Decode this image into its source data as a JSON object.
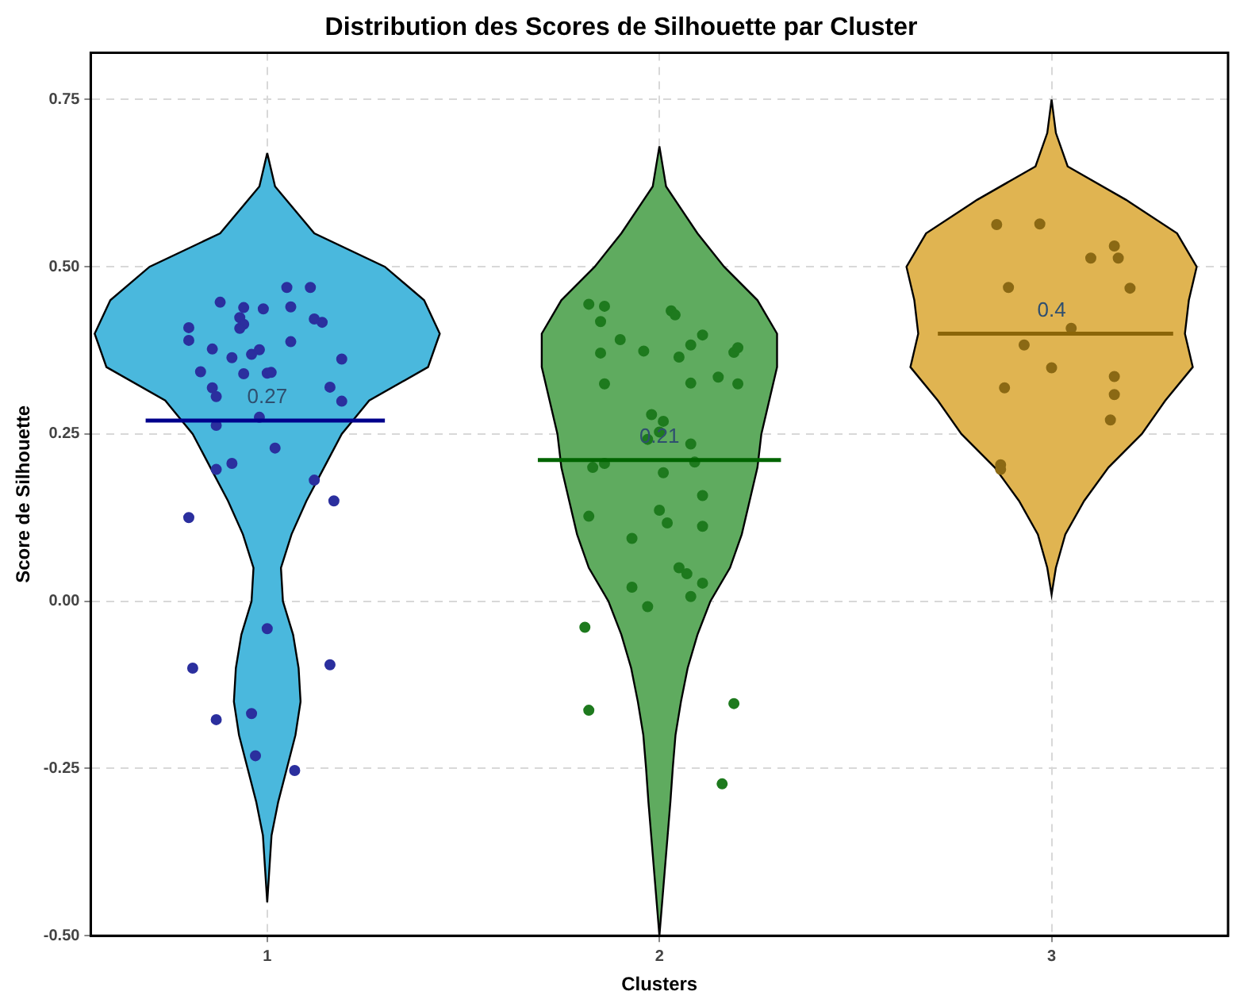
{
  "chart_data": {
    "type": "scatter",
    "title": "Distribution des Scores de Silhouette par Cluster",
    "xlabel": "Clusters",
    "ylabel": "Score de Silhouette",
    "xlim": [
      0.55,
      3.45
    ],
    "xticks": [
      1,
      2,
      3
    ],
    "ylim": [
      -0.5,
      0.82
    ],
    "yticks": [
      {
        "value": -0.5,
        "label": "-0.50"
      },
      {
        "value": -0.25,
        "label": "-0.25"
      },
      {
        "value": 0,
        "label": "0.00"
      },
      {
        "value": 0.25,
        "label": "0.25"
      },
      {
        "value": 0.5,
        "label": "0.50"
      },
      {
        "value": 0.75,
        "label": "0.75"
      }
    ],
    "grid": true,
    "legend": false,
    "series": [
      {
        "type": "area",
        "color": "#4ab8dd",
        "x": [
          1,
          1.02,
          1.12,
          1.3,
          1.4,
          1.44,
          1.41,
          1.26,
          1.19,
          1.145,
          1.1,
          1.062,
          1.035,
          1.04,
          1.066,
          1.08,
          1.085,
          1.072,
          1.05,
          1.028,
          1.011,
          1,
          0.989,
          0.972,
          0.95,
          0.928,
          0.915,
          0.92,
          0.934,
          0.96,
          0.965,
          0.938,
          0.9,
          0.855,
          0.81,
          0.74,
          0.59,
          0.56,
          0.6,
          0.7,
          0.88,
          0.98,
          1
        ],
        "values": [
          0.67,
          0.62,
          0.55,
          0.5,
          0.45,
          0.4,
          0.35,
          0.3,
          0.25,
          0.2,
          0.15,
          0.1,
          0.05,
          0,
          -0.05,
          -0.1,
          -0.15,
          -0.2,
          -0.25,
          -0.3,
          -0.35,
          -0.45,
          -0.35,
          -0.3,
          -0.25,
          -0.2,
          -0.15,
          -0.1,
          -0.05,
          0,
          0.05,
          0.1,
          0.15,
          0.2,
          0.25,
          0.3,
          0.35,
          0.4,
          0.45,
          0.5,
          0.55,
          0.62,
          0.67
        ]
      },
      {
        "type": "scatter",
        "marker": "circle",
        "color": "#2b2f9e",
        "x": [
          1.05,
          1.11,
          0.88,
          0.94,
          0.99,
          1.06,
          0.93,
          0.94,
          0.93,
          0.8,
          1.12,
          1.14,
          0.8,
          1.06,
          0.86,
          0.91,
          0.96,
          0.98,
          1.19,
          0.83,
          0.94,
          1,
          1.01,
          0.86,
          0.87,
          1.16,
          1.19,
          0.98,
          0.87,
          1.02,
          0.87,
          0.91,
          1.12,
          1.17,
          0.8,
          1,
          0.81,
          1.16,
          0.87,
          0.96,
          0.97,
          1.07
        ],
        "values": [
          0.469,
          0.469,
          0.447,
          0.439,
          0.437,
          0.44,
          0.424,
          0.414,
          0.408,
          0.409,
          0.422,
          0.417,
          0.39,
          0.388,
          0.377,
          0.364,
          0.369,
          0.376,
          0.362,
          0.343,
          0.34,
          0.341,
          0.342,
          0.319,
          0.306,
          0.32,
          0.299,
          0.275,
          0.263,
          0.229,
          0.197,
          0.206,
          0.181,
          0.15,
          0.125,
          -0.041,
          -0.1,
          -0.095,
          -0.177,
          -0.168,
          -0.231,
          -0.253
        ]
      },
      {
        "type": "line",
        "color": "#00008b",
        "x": [
          0.69,
          1.3
        ],
        "values": [
          0.27,
          0.27
        ]
      },
      {
        "type": "area",
        "color": "#5fab5f",
        "x": [
          2,
          2.017,
          2.097,
          2.165,
          2.25,
          2.3,
          2.3,
          2.28,
          2.26,
          2.25,
          2.23,
          2.21,
          2.18,
          2.13,
          2.097,
          2.072,
          2.055,
          2.041,
          2.034,
          2.028,
          2.014,
          2,
          1.986,
          1.972,
          1.966,
          1.959,
          1.945,
          1.928,
          1.903,
          1.87,
          1.82,
          1.79,
          1.77,
          1.75,
          1.74,
          1.72,
          1.7,
          1.7,
          1.75,
          1.835,
          1.903,
          1.983,
          2
        ],
        "values": [
          0.68,
          0.62,
          0.55,
          0.5,
          0.45,
          0.4,
          0.35,
          0.3,
          0.25,
          0.2,
          0.15,
          0.1,
          0.05,
          0,
          -0.05,
          -0.1,
          -0.15,
          -0.2,
          -0.25,
          -0.3,
          -0.4,
          -0.5,
          -0.4,
          -0.3,
          -0.25,
          -0.2,
          -0.15,
          -0.1,
          -0.05,
          0,
          0.05,
          0.1,
          0.15,
          0.2,
          0.25,
          0.3,
          0.35,
          0.4,
          0.45,
          0.5,
          0.55,
          0.62,
          0.68
        ]
      },
      {
        "type": "scatter",
        "marker": "circle",
        "color": "#1e7a1e",
        "x": [
          1.82,
          1.86,
          1.85,
          2.03,
          2.04,
          1.9,
          1.85,
          1.96,
          2.05,
          2.08,
          2.11,
          2.19,
          2.2,
          1.86,
          2.08,
          2.15,
          2.2,
          1.98,
          2.01,
          2,
          1.97,
          2.08,
          1.83,
          1.86,
          2.09,
          2.01,
          2.11,
          1.82,
          2,
          2.02,
          2.11,
          1.93,
          2.05,
          2.07,
          1.93,
          2.11,
          2.08,
          1.97,
          1.81,
          1.82,
          2.19,
          2.16
        ],
        "values": [
          0.444,
          0.441,
          0.418,
          0.434,
          0.428,
          0.391,
          0.371,
          0.374,
          0.365,
          0.383,
          0.398,
          0.372,
          0.379,
          0.325,
          0.326,
          0.335,
          0.325,
          0.279,
          0.269,
          0.253,
          0.242,
          0.235,
          0.2,
          0.206,
          0.208,
          0.192,
          0.158,
          0.127,
          0.136,
          0.117,
          0.112,
          0.094,
          0.05,
          0.041,
          0.021,
          0.027,
          0.007,
          -0.008,
          -0.039,
          -0.163,
          -0.153,
          -0.273
        ]
      },
      {
        "type": "line",
        "color": "#006400",
        "x": [
          1.69,
          2.31
        ],
        "values": [
          0.211,
          0.211
        ]
      },
      {
        "type": "area",
        "color": "#e0b451",
        "x": [
          3,
          3.011,
          3.041,
          3.19,
          3.32,
          3.37,
          3.35,
          3.34,
          3.36,
          3.29,
          3.23,
          3.145,
          3.083,
          3.035,
          3.011,
          3,
          2.989,
          2.965,
          2.917,
          2.855,
          2.77,
          2.71,
          2.64,
          2.66,
          2.65,
          2.63,
          2.68,
          2.81,
          2.959,
          2.989,
          3
        ],
        "values": [
          0.75,
          0.7,
          0.65,
          0.6,
          0.55,
          0.5,
          0.45,
          0.4,
          0.35,
          0.3,
          0.25,
          0.2,
          0.15,
          0.1,
          0.05,
          0.01,
          0.05,
          0.1,
          0.15,
          0.2,
          0.25,
          0.3,
          0.35,
          0.4,
          0.45,
          0.5,
          0.55,
          0.6,
          0.65,
          0.7,
          0.75
        ]
      },
      {
        "type": "scatter",
        "marker": "circle",
        "color": "#8b6914",
        "x": [
          2.86,
          2.97,
          3.16,
          3.1,
          3.17,
          2.89,
          3.2,
          3.05,
          2.93,
          3,
          3.16,
          2.88,
          3.16,
          3.15,
          2.87,
          2.87
        ],
        "values": [
          0.563,
          0.564,
          0.531,
          0.513,
          0.513,
          0.469,
          0.468,
          0.408,
          0.383,
          0.349,
          0.336,
          0.319,
          0.309,
          0.271,
          0.204,
          0.197
        ]
      },
      {
        "type": "line",
        "color": "#8b6508",
        "x": [
          2.71,
          3.31
        ],
        "values": [
          0.4,
          0.4
        ]
      }
    ],
    "annotations": [
      {
        "text": "0.27",
        "x": 1,
        "y": 0.27
      },
      {
        "text": "0.21",
        "x": 2,
        "y": 0.211
      },
      {
        "text": "0.4",
        "x": 3,
        "y": 0.4
      }
    ]
  }
}
